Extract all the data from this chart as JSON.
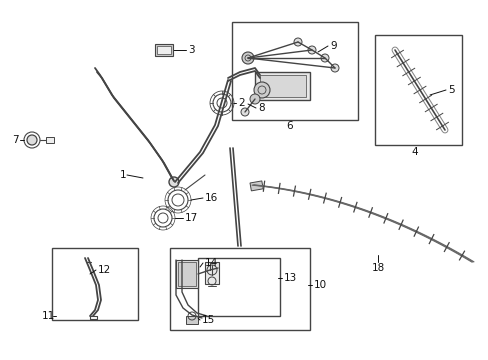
{
  "background_color": "#ffffff",
  "line_color": "#444444",
  "label_color": "#111111",
  "figsize": [
    4.89,
    3.6
  ],
  "dpi": 100
}
